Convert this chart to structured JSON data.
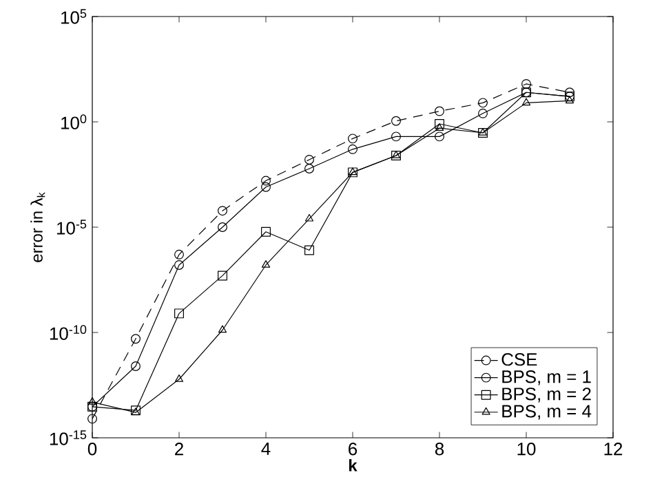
{
  "chart_data": {
    "type": "line",
    "xlabel": "k",
    "ylabel": "error in λ$_{k}$",
    "log": "y",
    "x": [
      0,
      1,
      2,
      3,
      4,
      5,
      6,
      7,
      8,
      9,
      10,
      11
    ],
    "xlim": [
      0,
      12
    ],
    "xticks": [
      0,
      2,
      4,
      6,
      8,
      10,
      12
    ],
    "ylim": [
      1e-15,
      100000.0
    ],
    "yticks": [
      {
        "value": 1e-15,
        "label": "10$^{-15}$"
      },
      {
        "value": 1e-10,
        "label": "10$^{-10}$"
      },
      {
        "value": 1e-05,
        "label": "10$^{-5}$"
      },
      {
        "value": 1,
        "label": "10$^{0}$"
      },
      {
        "value": 100000.0,
        "label": "10$^{5}$"
      }
    ],
    "legend": "bottom right",
    "grid": false,
    "series": [
      {
        "name": "CSE",
        "color": "#000000",
        "marker": "circle",
        "line_style": "dashed",
        "values": [
          8e-15,
          5e-11,
          5e-07,
          6e-05,
          0.0016,
          0.016,
          0.16,
          1.1,
          3.2,
          8,
          63,
          25
        ]
      },
      {
        "name": "BPS, m = 1",
        "color": "#000000",
        "marker": "circle",
        "line_style": "solid",
        "values": [
          3e-14,
          2.5e-12,
          1.6e-07,
          1e-05,
          0.0008,
          0.006,
          0.05,
          0.2,
          0.2,
          2.5,
          25,
          16
        ]
      },
      {
        "name": "BPS, m = 2",
        "color": "#000000",
        "marker": "square",
        "line_style": "solid",
        "values": [
          3e-14,
          2e-14,
          8e-10,
          5e-08,
          6e-06,
          8e-07,
          0.004,
          0.025,
          0.8,
          0.3,
          25,
          16
        ]
      },
      {
        "name": "BPS, m = 4",
        "color": "#000000",
        "marker": "triangle",
        "line_style": "solid",
        "values": [
          5e-14,
          1.6e-14,
          6e-13,
          1.3e-10,
          1.6e-07,
          2.5e-05,
          0.004,
          0.025,
          0.5,
          0.3,
          8,
          10
        ]
      }
    ]
  }
}
